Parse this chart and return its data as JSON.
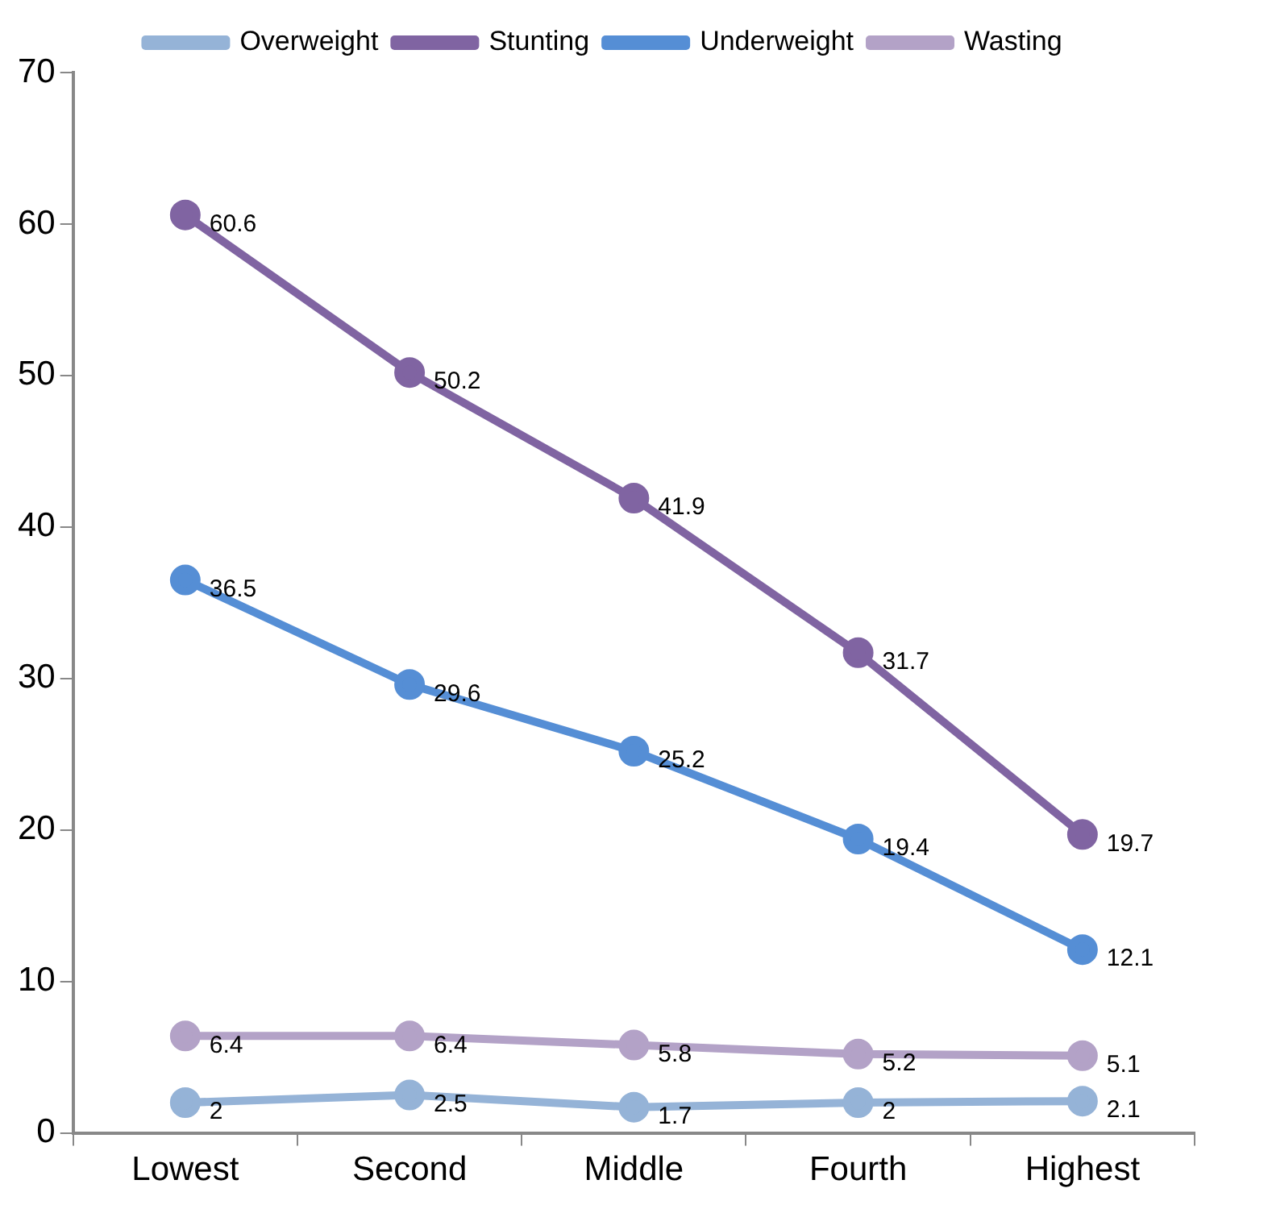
{
  "chart_data": {
    "type": "line",
    "categories": [
      "Lowest",
      "Second",
      "Middle",
      "Fourth",
      "Highest"
    ],
    "series": [
      {
        "name": "Overweight",
        "color": "#95b3d7",
        "values": [
          2,
          2.5,
          1.7,
          2,
          2.1
        ]
      },
      {
        "name": "Stunting",
        "color": "#8064a2",
        "values": [
          60.6,
          50.2,
          41.9,
          31.7,
          19.7
        ]
      },
      {
        "name": "Underweight",
        "color": "#558ed5",
        "values": [
          36.5,
          29.6,
          25.2,
          19.4,
          12.1
        ]
      },
      {
        "name": "Wasting",
        "color": "#b3a2c7",
        "values": [
          6.4,
          6.4,
          5.8,
          5.2,
          5.1
        ]
      }
    ],
    "ylim": [
      0,
      70
    ],
    "yticks": [
      0,
      10,
      20,
      30,
      40,
      50,
      60,
      70
    ],
    "grid": false,
    "legend": "top",
    "marker": "circle",
    "line_style": "solid",
    "data_labels": true
  }
}
